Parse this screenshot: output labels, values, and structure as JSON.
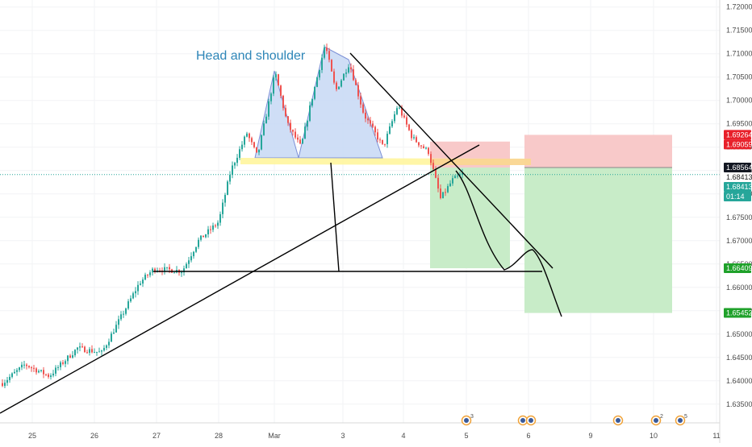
{
  "colors": {
    "background": "#ffffff",
    "grid": "#f2f3f5",
    "candle_up": "#26a69a",
    "candle_down": "#ef5350",
    "trend_line": "#000000",
    "pattern_fill": "#c7d8f5",
    "pattern_stroke": "#7b8fd6",
    "neckline_fill": "#fff59d",
    "stop_zone": "#f8c9c9",
    "target_zone": "#c8ecc8",
    "tag_red": "#e8202a",
    "tag_green": "#1fa12a",
    "tag_teal": "#26a69a",
    "tag_dark": "#131722",
    "current_price_line": "#26a69a"
  },
  "annotations": {
    "pattern_label": "Head and shoulder"
  },
  "chart_data": {
    "type": "candlestick",
    "instrument_note": "",
    "x_axis": {
      "type": "date",
      "tick_labels": [
        "25",
        "26",
        "27",
        "28",
        "Mar",
        "3",
        "4",
        "5",
        "6",
        "9",
        "10",
        "11"
      ],
      "range": [
        "25",
        "11"
      ]
    },
    "y_axis": {
      "position": "right",
      "range": [
        1.631,
        1.7215
      ],
      "tick_values": [
        1.635,
        1.64,
        1.645,
        1.65,
        1.655,
        1.66,
        1.665,
        1.67,
        1.675,
        1.68,
        1.685,
        1.69,
        1.695,
        1.7,
        1.705,
        1.71,
        1.715,
        1.72
      ],
      "tick_labels": [
        "1.63500",
        "1.64000",
        "1.64500",
        "1.65000",
        "1.65500",
        "1.66000",
        "1.66500",
        "1.67000",
        "1.67500",
        "1.68000",
        "1.68500",
        "1.69000",
        "1.69500",
        "1.70000",
        "1.70500",
        "1.71000",
        "1.71500",
        "1.72000"
      ]
    },
    "price_tags": [
      {
        "label": "1.69264",
        "value": 1.69264,
        "style": "red"
      },
      {
        "label": "1.69059",
        "value": 1.69059,
        "style": "red"
      },
      {
        "label": "1.68564",
        "value": 1.68564,
        "style": "dark"
      },
      {
        "label": "1.68413",
        "value": 1.68413,
        "style": "plain"
      },
      {
        "label": "1.68413",
        "value": 1.68413,
        "style": "teal"
      },
      {
        "label": "01:14",
        "value": 1.6826,
        "style": "teal"
      },
      {
        "label": "1.66409",
        "value": 1.66409,
        "style": "green"
      },
      {
        "label": "1.65452",
        "value": 1.65452,
        "style": "green"
      }
    ],
    "current_price": 1.68413,
    "key_levels": {
      "neckline": 1.6883,
      "support_line": 1.66409,
      "stop_level_1": 1.69264,
      "stop_level_2": 1.69059,
      "entry": 1.68564,
      "target_1": 1.66409,
      "target_2": 1.65452
    },
    "event_markers": [
      {
        "label": "3"
      },
      {
        "label": ""
      },
      {
        "label": ""
      },
      {
        "label": ""
      },
      {
        "label": "2"
      },
      {
        "label": "5"
      }
    ],
    "grid": true,
    "legend": "none"
  }
}
